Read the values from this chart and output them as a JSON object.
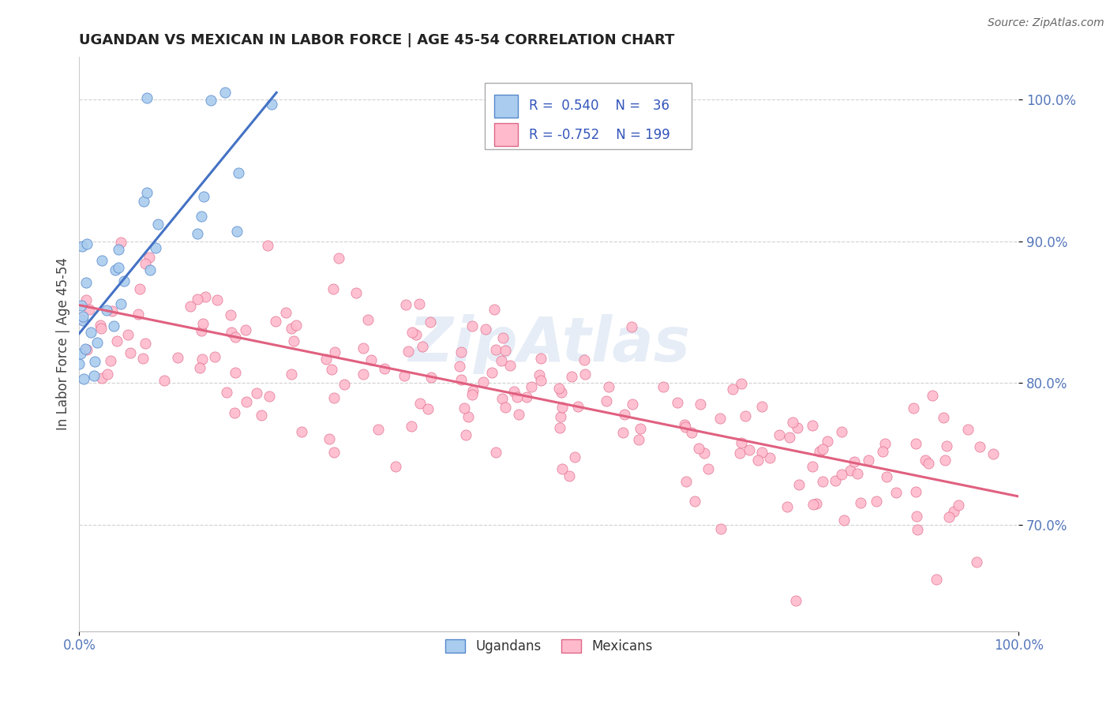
{
  "title": "UGANDAN VS MEXICAN IN LABOR FORCE | AGE 45-54 CORRELATION CHART",
  "source": "Source: ZipAtlas.com",
  "ylabel": "In Labor Force | Age 45-54",
  "xlim": [
    0.0,
    1.0
  ],
  "ylim": [
    0.625,
    1.03
  ],
  "ugandan_R": 0.54,
  "ugandan_N": 36,
  "mexican_R": -0.752,
  "mexican_N": 199,
  "ugandan_color": "#aaccee",
  "ugandan_edge_color": "#5588cc",
  "ugandan_line_color": "#4472c4",
  "mexican_color": "#ffbbcc",
  "mexican_edge_color": "#dd6688",
  "mexican_line_color": "#e06080",
  "watermark": "ZipAtlas",
  "ugandan_seed": 10,
  "mexican_seed": 7,
  "ugandan_trend_x": [
    0.0,
    0.21
  ],
  "ugandan_trend_y": [
    0.835,
    1.005
  ],
  "mexican_trend_x": [
    0.0,
    1.0
  ],
  "mexican_trend_y": [
    0.855,
    0.72
  ],
  "yticks": [
    0.7,
    0.8,
    0.9,
    1.0
  ],
  "ytick_labels": [
    "70.0%",
    "80.0%",
    "90.0%",
    "100.0%"
  ],
  "xtick_left_label": "0.0%",
  "xtick_right_label": "100.0%",
  "legend_ugandan_label": "Ugandans",
  "legend_mexican_label": "Mexicans"
}
